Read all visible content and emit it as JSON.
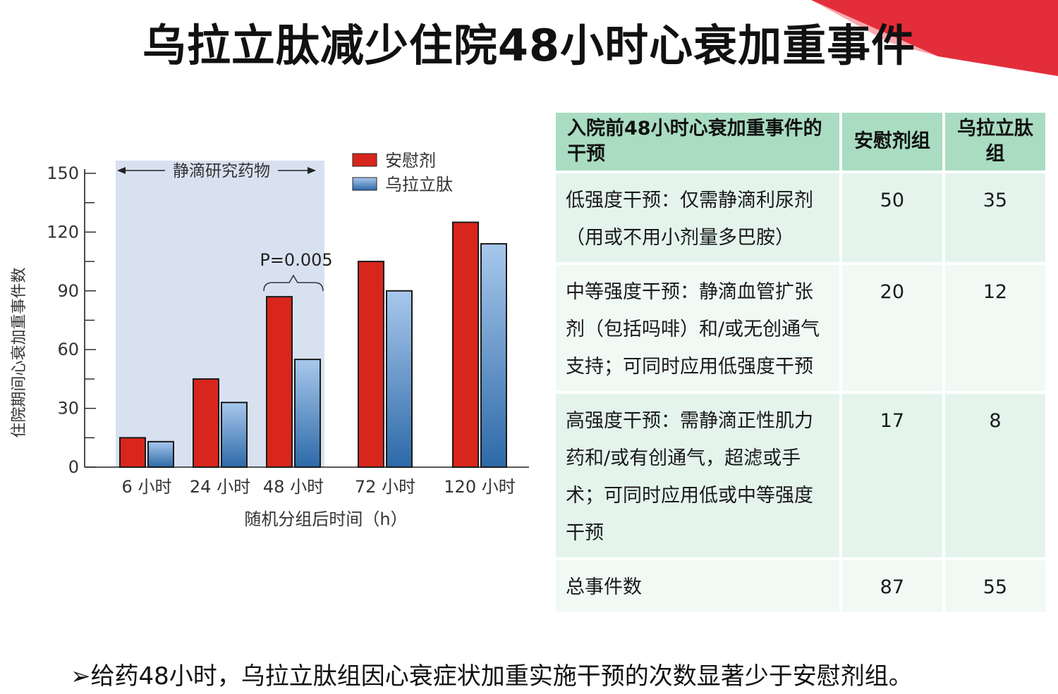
{
  "title": "乌拉立肽减少住院48小时心衰加重事件",
  "colors": {
    "placebo": "#d9261c",
    "drug_top": "#a8c8ec",
    "drug_bottom": "#2d69a8",
    "shaded": "#d8e1f0",
    "table_header": "#a9dcc1",
    "accent": "#e21b2a"
  },
  "chart_data": {
    "type": "bar",
    "categories": [
      "6 小时",
      "24 小时",
      "48 小时",
      "72 小时",
      "120 小时"
    ],
    "series": [
      {
        "name": "安慰剂",
        "values": [
          15,
          45,
          87,
          105,
          125
        ]
      },
      {
        "name": "乌拉立肽",
        "values": [
          13,
          33,
          55,
          90,
          114
        ]
      }
    ],
    "xlabel": "随机分组后时间（h）",
    "ylabel": "住院期间心衰加重事件数",
    "ylim": [
      0,
      150
    ],
    "yticks": [
      0,
      30,
      60,
      90,
      120,
      150
    ],
    "legend_position": "top-right",
    "grid": false,
    "annotations": {
      "shaded_region_label": "静滴研究药物",
      "shaded_region_categories": [
        "6 小时",
        "24 小时",
        "48 小时"
      ],
      "p_value": "P=0.005",
      "p_value_category": "48 小时"
    }
  },
  "table": {
    "headers": [
      "入院前48小时心衰加重事件的干预",
      "安慰剂组",
      "乌拉立肽组"
    ],
    "rows": [
      {
        "desc": "低强度干预：仅需静滴利尿剂（用或不用小剂量多巴胺）",
        "placebo": "50",
        "drug": "35"
      },
      {
        "desc": "中等强度干预：静滴血管扩张剂（包括吗啡）和/或无创通气支持；可同时应用低强度干预",
        "placebo": "20",
        "drug": "12"
      },
      {
        "desc": "高强度干预：需静滴正性肌力药和/或有创通气，超滤或手术；可同时应用低或中等强度干预",
        "placebo": "17",
        "drug": "8"
      },
      {
        "desc": "总事件数",
        "placebo": "87",
        "drug": "55"
      }
    ]
  },
  "footer": "➢给药48小时，乌拉立肽组因心衰症状加重实施干预的次数显著少于安慰剂组。"
}
